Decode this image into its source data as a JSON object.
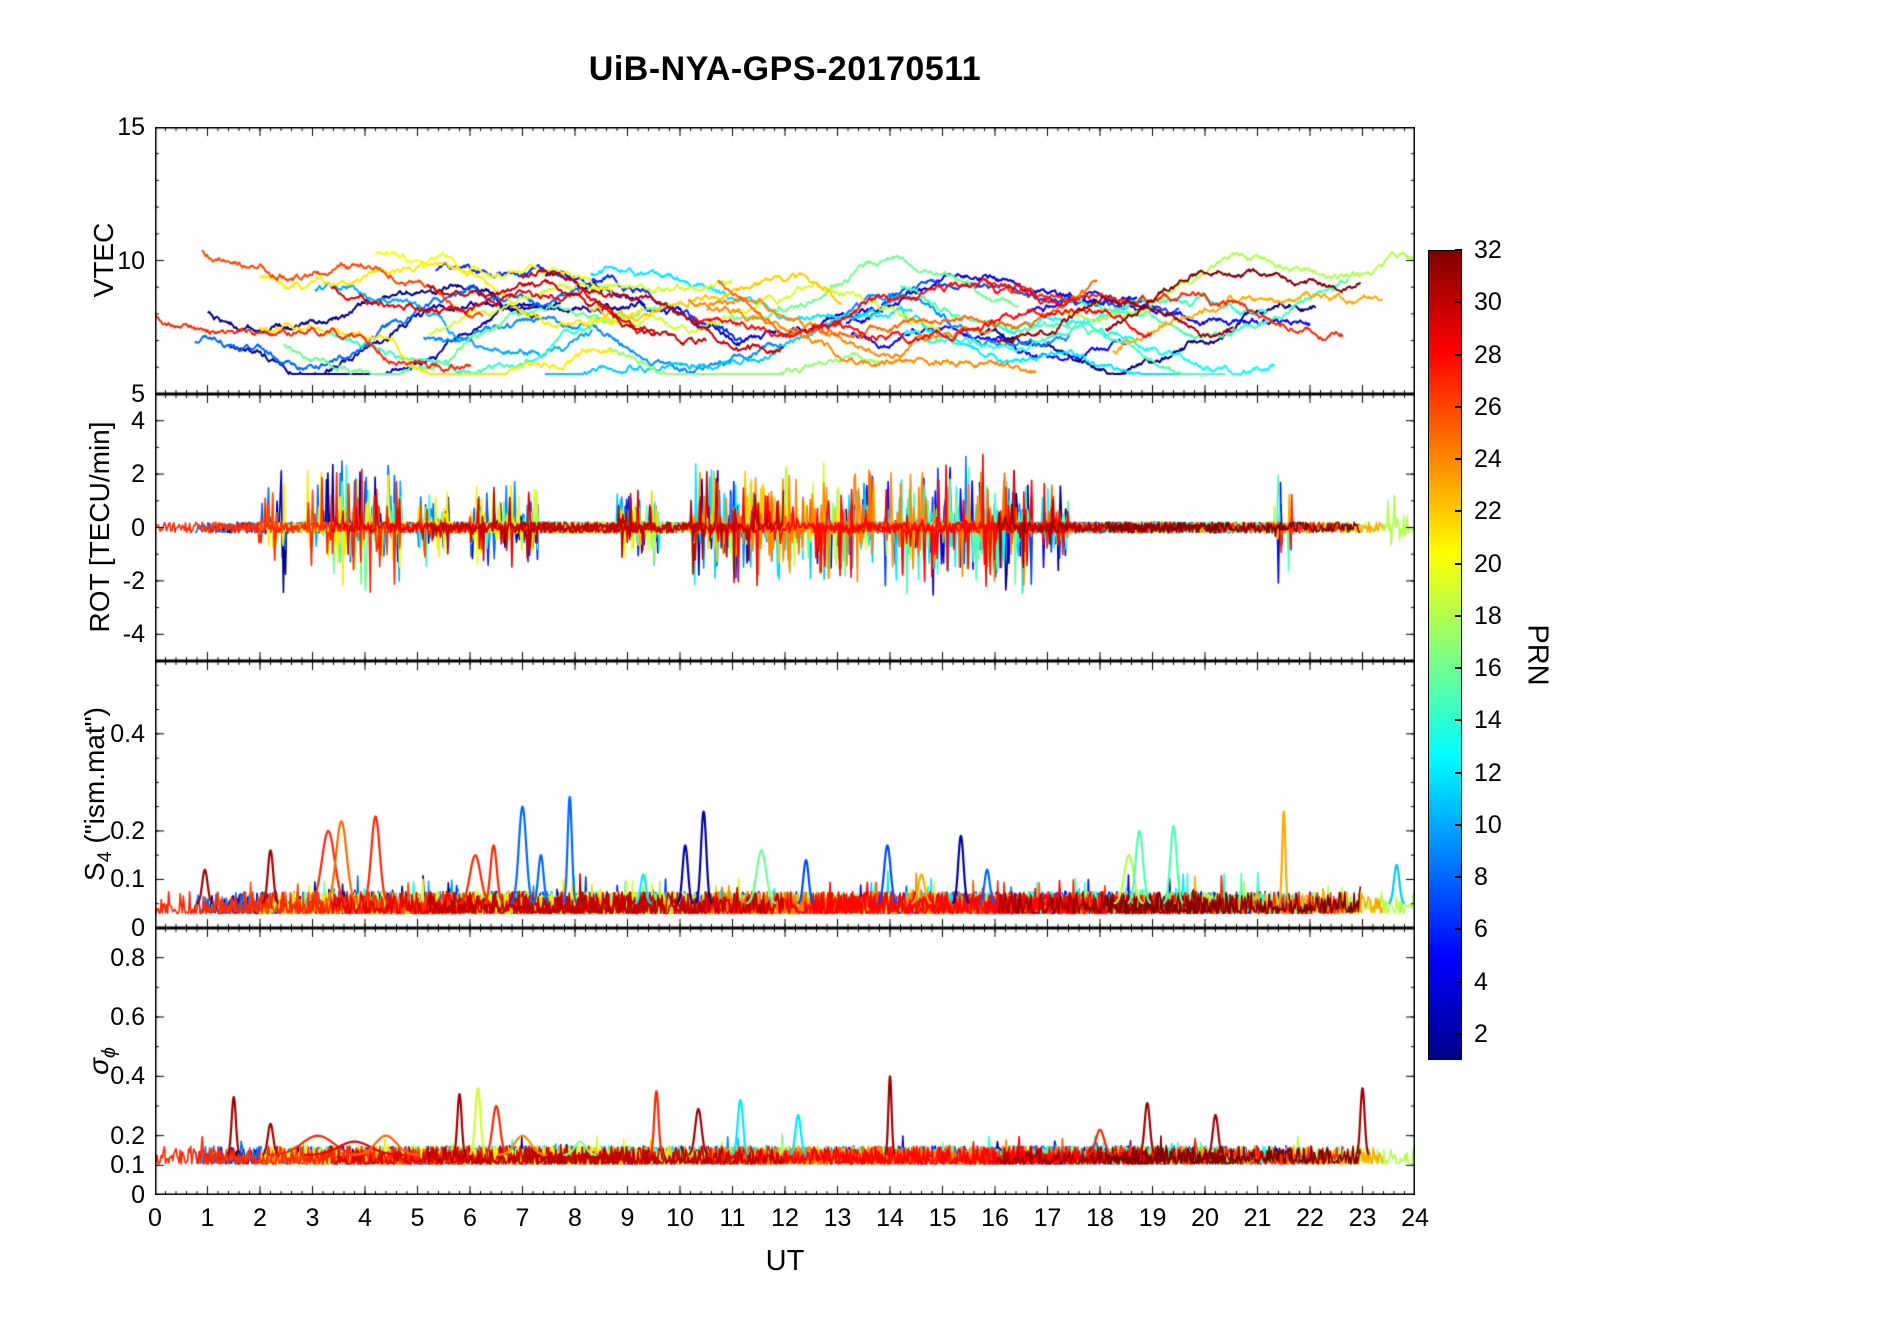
{
  "chart_data": {
    "type": "line",
    "title": "UiB-NYA-GPS-20170511",
    "xlabel": "UT",
    "x_range": [
      0,
      24
    ],
    "x_tick_labels": [
      "0",
      "1",
      "2",
      "3",
      "4",
      "5",
      "6",
      "7",
      "8",
      "9",
      "10",
      "11",
      "12",
      "13",
      "14",
      "15",
      "16",
      "17",
      "18",
      "19",
      "20",
      "21",
      "22",
      "23",
      "24"
    ],
    "seed": 20170511,
    "series_info": {
      "count": 32,
      "color_by": "PRN",
      "colormap": "jet",
      "prn_range": [
        1,
        32
      ],
      "description": "GPS satellite passes (PRN 1-32), each drawn as a colored noisy time series over 24 h UT"
    },
    "colorbar": {
      "label": "PRN",
      "range": [
        1,
        32
      ],
      "tick_values": [
        2,
        4,
        6,
        8,
        10,
        12,
        14,
        16,
        18,
        20,
        22,
        24,
        26,
        28,
        30,
        32
      ],
      "tick_labels": [
        "2",
        "4",
        "6",
        "8",
        "10",
        "12",
        "14",
        "16",
        "18",
        "20",
        "22",
        "24",
        "26",
        "28",
        "30",
        "32"
      ],
      "gradient": [
        {
          "t": 0.0,
          "c": "#000089"
        },
        {
          "t": 0.125,
          "c": "#0000ff"
        },
        {
          "t": 0.375,
          "c": "#00ffff"
        },
        {
          "t": 0.625,
          "c": "#ffff00"
        },
        {
          "t": 0.875,
          "c": "#ff0000"
        },
        {
          "t": 1.0,
          "c": "#800000"
        }
      ]
    },
    "panels": [
      {
        "name": "VTEC",
        "ylabel": "VTEC",
        "ylim": [
          5,
          15
        ],
        "yticks": [
          {
            "v": 15,
            "label": "15"
          },
          {
            "v": 10,
            "label": "10"
          },
          {
            "v": 5,
            "label": "5"
          }
        ],
        "y_minor_step": 1,
        "gen": {
          "kind": "vtec",
          "value_range_observed": [
            5.8,
            11.3
          ],
          "typical_baseline": [
            7,
            9.5
          ]
        }
      },
      {
        "name": "ROT",
        "ylabel": "ROT [TECU/min]",
        "ylim": [
          -5,
          5
        ],
        "yticks": [
          {
            "v": 4,
            "label": "4"
          },
          {
            "v": 2,
            "label": "2"
          },
          {
            "v": 0,
            "label": "0"
          },
          {
            "v": -2,
            "label": "-2"
          },
          {
            "v": -4,
            "label": "-4"
          }
        ],
        "y_minor_step": 1,
        "gen": {
          "kind": "rot",
          "quiet_amp": 0.4,
          "bursts": [
            {
              "t0": 1.9,
              "t1": 2.5,
              "amp": 2.7
            },
            {
              "t0": 2.9,
              "t1": 4.7,
              "amp": 2.9
            },
            {
              "t0": 5.0,
              "t1": 5.6,
              "amp": 1.6
            },
            {
              "t0": 6.0,
              "t1": 7.3,
              "amp": 1.8
            },
            {
              "t0": 8.8,
              "t1": 9.6,
              "amp": 1.5
            },
            {
              "t0": 10.2,
              "t1": 13.7,
              "amp": 2.6
            },
            {
              "t0": 13.9,
              "t1": 16.7,
              "amp": 2.9
            },
            {
              "t0": 16.9,
              "t1": 17.4,
              "amp": 1.8
            },
            {
              "t0": 21.3,
              "t1": 21.7,
              "amp": 2.9
            },
            {
              "t0": 23.4,
              "t1": 23.9,
              "amp": 1.4
            }
          ]
        }
      },
      {
        "name": "S4",
        "ylabel_pre": "S",
        "ylabel_sub": "4",
        "ylabel_post": " (\"ism.mat\")",
        "ylim": [
          0,
          0.55
        ],
        "yticks": [
          {
            "v": 0.4,
            "label": "0.4"
          },
          {
            "v": 0.2,
            "label": "0.2"
          },
          {
            "v": 0.1,
            "label": "0.1"
          },
          {
            "v": 0,
            "label": "0"
          }
        ],
        "y_minor_step": 0.05,
        "gen": {
          "kind": "s4",
          "baseline": 0.05,
          "events": [
            {
              "t": 0.95,
              "peak": 0.12,
              "prn": 31,
              "w": 0.05
            },
            {
              "t": 2.2,
              "peak": 0.16,
              "prn": 31,
              "w": 0.05
            },
            {
              "t": 3.3,
              "peak": 0.2,
              "prn": 27,
              "w": 0.12
            },
            {
              "t": 3.55,
              "peak": 0.22,
              "prn": 25,
              "w": 0.1
            },
            {
              "t": 4.2,
              "peak": 0.23,
              "prn": 27,
              "w": 0.08
            },
            {
              "t": 6.1,
              "peak": 0.15,
              "prn": 27,
              "w": 0.1
            },
            {
              "t": 6.45,
              "peak": 0.17,
              "prn": 27,
              "w": 0.06
            },
            {
              "t": 7.0,
              "peak": 0.25,
              "prn": 8,
              "w": 0.07
            },
            {
              "t": 7.35,
              "peak": 0.15,
              "prn": 8,
              "w": 0.05
            },
            {
              "t": 7.9,
              "peak": 0.27,
              "prn": 8,
              "w": 0.04
            },
            {
              "t": 9.3,
              "peak": 0.11,
              "prn": 12,
              "w": 0.05
            },
            {
              "t": 10.1,
              "peak": 0.17,
              "prn": 2,
              "w": 0.05
            },
            {
              "t": 10.45,
              "peak": 0.24,
              "prn": 2,
              "w": 0.05
            },
            {
              "t": 11.55,
              "peak": 0.16,
              "prn": 16,
              "w": 0.09
            },
            {
              "t": 12.4,
              "peak": 0.14,
              "prn": 7,
              "w": 0.05
            },
            {
              "t": 13.95,
              "peak": 0.17,
              "prn": 7,
              "w": 0.06
            },
            {
              "t": 14.6,
              "peak": 0.11,
              "prn": 23,
              "w": 0.06
            },
            {
              "t": 15.35,
              "peak": 0.19,
              "prn": 2,
              "w": 0.05
            },
            {
              "t": 15.85,
              "peak": 0.12,
              "prn": 8,
              "w": 0.05
            },
            {
              "t": 18.55,
              "peak": 0.15,
              "prn": 18,
              "w": 0.09
            },
            {
              "t": 18.75,
              "peak": 0.2,
              "prn": 15,
              "w": 0.07
            },
            {
              "t": 19.4,
              "peak": 0.21,
              "prn": 15,
              "w": 0.06
            },
            {
              "t": 21.5,
              "peak": 0.24,
              "prn": 23,
              "w": 0.03
            },
            {
              "t": 23.65,
              "peak": 0.13,
              "prn": 11,
              "w": 0.05
            }
          ]
        }
      },
      {
        "name": "sigma_phi",
        "ylabel_pre": "σ",
        "ylabel_sub": "ϕ",
        "ylim": [
          0,
          0.9
        ],
        "yticks": [
          {
            "v": 0.8,
            "label": "0.8"
          },
          {
            "v": 0.6,
            "label": "0.6"
          },
          {
            "v": 0.4,
            "label": "0.4"
          },
          {
            "v": 0.2,
            "label": "0.2"
          },
          {
            "v": 0.1,
            "label": "0.1"
          },
          {
            "v": 0,
            "label": "0"
          }
        ],
        "y_minor_step": 0.1,
        "gen": {
          "kind": "sigma",
          "baseline": 0.13,
          "events": [
            {
              "t": 1.5,
              "peak": 0.33,
              "prn": 31,
              "w": 0.04
            },
            {
              "t": 2.2,
              "peak": 0.24,
              "prn": 31,
              "w": 0.05
            },
            {
              "t": 3.1,
              "peak": 0.2,
              "prn": 27,
              "w": 0.3
            },
            {
              "t": 3.8,
              "peak": 0.18,
              "prn": 29,
              "w": 0.3
            },
            {
              "t": 4.4,
              "peak": 0.2,
              "prn": 25,
              "w": 0.2
            },
            {
              "t": 5.8,
              "peak": 0.34,
              "prn": 31,
              "w": 0.04
            },
            {
              "t": 6.15,
              "peak": 0.36,
              "prn": 19,
              "w": 0.05
            },
            {
              "t": 6.5,
              "peak": 0.3,
              "prn": 27,
              "w": 0.07
            },
            {
              "t": 7.0,
              "peak": 0.2,
              "prn": 24,
              "w": 0.15
            },
            {
              "t": 8.1,
              "peak": 0.18,
              "prn": 17,
              "w": 0.1
            },
            {
              "t": 9.55,
              "peak": 0.35,
              "prn": 27,
              "w": 0.04
            },
            {
              "t": 10.35,
              "peak": 0.29,
              "prn": 31,
              "w": 0.06
            },
            {
              "t": 11.15,
              "peak": 0.32,
              "prn": 12,
              "w": 0.05
            },
            {
              "t": 12.25,
              "peak": 0.27,
              "prn": 12,
              "w": 0.05
            },
            {
              "t": 14.0,
              "peak": 0.4,
              "prn": 31,
              "w": 0.03
            },
            {
              "t": 18.0,
              "peak": 0.22,
              "prn": 27,
              "w": 0.08
            },
            {
              "t": 18.9,
              "peak": 0.31,
              "prn": 31,
              "w": 0.05
            },
            {
              "t": 20.2,
              "peak": 0.27,
              "prn": 31,
              "w": 0.05
            },
            {
              "t": 23.0,
              "peak": 0.36,
              "prn": 31,
              "w": 0.04
            }
          ]
        }
      }
    ]
  }
}
